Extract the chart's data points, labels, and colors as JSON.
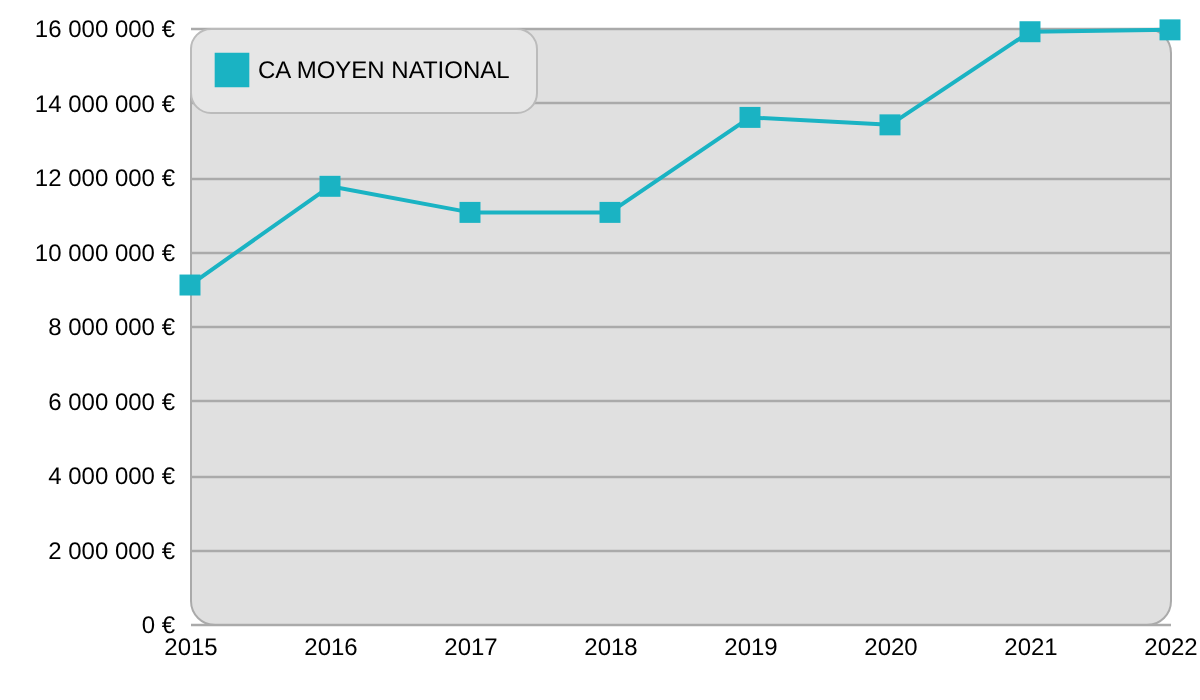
{
  "chart_data": {
    "type": "line",
    "x": [
      2015,
      2016,
      2017,
      2018,
      2019,
      2020,
      2021,
      2022
    ],
    "series": [
      {
        "name": "CA MOYEN NATIONAL",
        "color": "#1ab3c3",
        "values": [
          9100000,
          11750000,
          11050000,
          11050000,
          13600000,
          13400000,
          15900000,
          15950000
        ]
      }
    ],
    "xlim": [
      2015,
      2022
    ],
    "xticks": [
      2015,
      2016,
      2017,
      2018,
      2019,
      2020,
      2021,
      2022
    ],
    "ylim": [
      0,
      16000000
    ],
    "yticks": [
      {
        "value": 0,
        "label": "0 €"
      },
      {
        "value": 2000000,
        "label": "2 000 000 €"
      },
      {
        "value": 4000000,
        "label": "4 000 000 €"
      },
      {
        "value": 6000000,
        "label": "6 000 000 €"
      },
      {
        "value": 8000000,
        "label": "8 000 000 €"
      },
      {
        "value": 10000000,
        "label": "10 000 000 €"
      },
      {
        "value": 12000000,
        "label": "12 000 000 €"
      },
      {
        "value": 14000000,
        "label": "14 000 000 €"
      },
      {
        "value": 16000000,
        "label": "16 000 000 €"
      }
    ],
    "grid": "y",
    "legend": "top left",
    "marker": "square",
    "line_style": "solid"
  }
}
